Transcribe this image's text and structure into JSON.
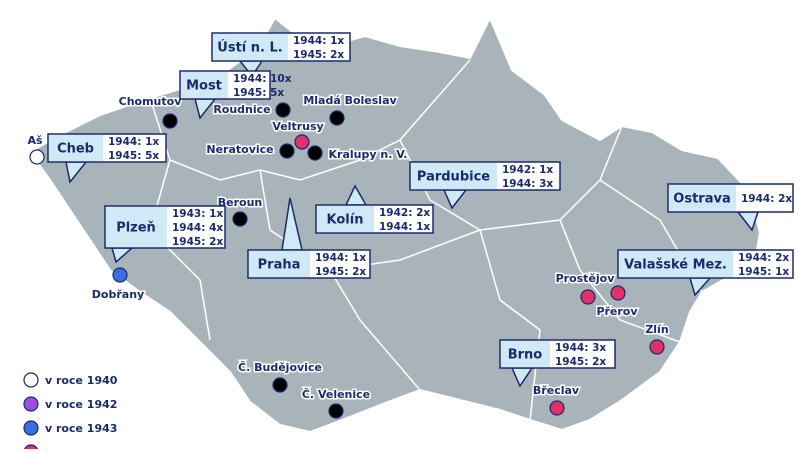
{
  "callouts": [
    {
      "name": "Ústí n. L.",
      "lines": [
        "1944: 1x",
        "1945: 2x"
      ]
    },
    {
      "name": "Most",
      "lines": [
        "1944: 10x",
        "1945: 5x"
      ]
    },
    {
      "name": "Cheb",
      "lines": [
        "1944: 1x",
        "1945: 5x"
      ]
    },
    {
      "name": "Plzeň",
      "lines": [
        "1943: 1x",
        "1944: 4x",
        "1945: 2x"
      ]
    },
    {
      "name": "Praha",
      "lines": [
        "1944: 1x",
        "1945: 2x"
      ]
    },
    {
      "name": "Kolín",
      "lines": [
        "1942: 2x",
        "1944: 1x"
      ]
    },
    {
      "name": "Pardubice",
      "lines": [
        "1942: 1x",
        "1944: 3x"
      ]
    },
    {
      "name": "Ostrava",
      "lines": [
        "1944: 2x"
      ]
    },
    {
      "name": "Valašské Mez.",
      "lines": [
        "1944: 2x",
        "1945: 1x"
      ]
    },
    {
      "name": "Brno",
      "lines": [
        "1944: 3x",
        "1945: 2x"
      ]
    }
  ],
  "places": [
    {
      "label": "Chomutov",
      "color": "#000000"
    },
    {
      "label": "Roudnice",
      "color": "#000000"
    },
    {
      "label": "Mladá Boleslav",
      "color": "#000000"
    },
    {
      "label": "Veltrusy",
      "color": "#e0306a"
    },
    {
      "label": "Neratovice",
      "color": "#000000"
    },
    {
      "label": "Kralupy n. V.",
      "color": "#000000"
    },
    {
      "label": "Aš",
      "color": "#ffffff"
    },
    {
      "label": "Beroun",
      "color": "#000000"
    },
    {
      "label": "Dobřany",
      "color": "#3a6ee0"
    },
    {
      "label": "Prostějov",
      "color": "#e0306a"
    },
    {
      "label": "Přerov",
      "color": "#e0306a"
    },
    {
      "label": "Zlín",
      "color": "#e0306a"
    },
    {
      "label": "Břeclav",
      "color": "#e0306a"
    },
    {
      "label": "Č. Budějovice",
      "color": "#000000"
    },
    {
      "label": "Č. Velenice",
      "color": "#000000"
    }
  ],
  "legend": [
    {
      "label": "v roce 1940",
      "color": "#ffffff"
    },
    {
      "label": "v roce 1942",
      "color": "#a24be0"
    },
    {
      "label": "v roce 1943",
      "color": "#3a6ee0"
    },
    {
      "color": "#e0306a"
    }
  ]
}
